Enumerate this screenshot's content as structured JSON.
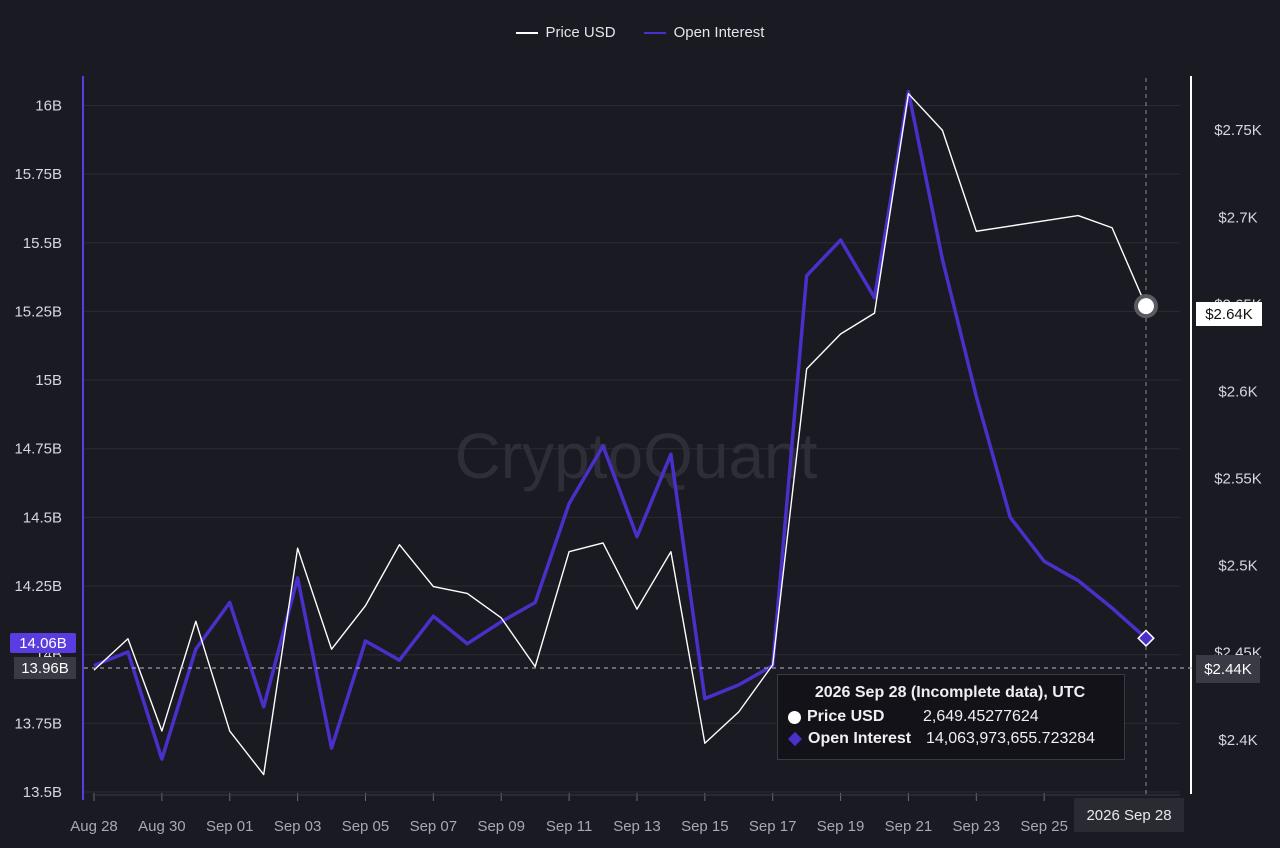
{
  "legend": {
    "price_label": "Price USD",
    "oi_label": "Open Interest"
  },
  "watermark": "CryptoQuant",
  "tooltip": {
    "title": "2026 Sep 28 (Incomplete data), UTC",
    "price_label": "Price USD",
    "price_value": "2,649.45277624",
    "oi_label": "Open Interest",
    "oi_value": "14,063,973,655.723284"
  },
  "badges": {
    "date": "2026 Sep 28",
    "oi_current": "14.06B",
    "oi_cursor": "13.96B",
    "price_current": "$2.64K",
    "price_cursor": "$2.44K"
  },
  "colors": {
    "background": "#1a1a22",
    "price": "#ffffff",
    "open_interest": "#4b2fc9",
    "grid": "#2a2a34",
    "axis_left": "#5b3ce0"
  },
  "chart_data": {
    "type": "line",
    "x": [
      "Aug 28",
      "Aug 29",
      "Aug 30",
      "Aug 31",
      "Sep 01",
      "Sep 02",
      "Sep 03",
      "Sep 04",
      "Sep 05",
      "Sep 06",
      "Sep 07",
      "Sep 08",
      "Sep 09",
      "Sep 10",
      "Sep 11",
      "Sep 12",
      "Sep 13",
      "Sep 14",
      "Sep 15",
      "Sep 16",
      "Sep 17",
      "Sep 18",
      "Sep 19",
      "Sep 20",
      "Sep 21",
      "Sep 22",
      "Sep 23",
      "Sep 24",
      "Sep 25",
      "Sep 26",
      "Sep 27",
      "Sep 28"
    ],
    "x_tick_labels": [
      "Aug 28",
      "Aug 30",
      "Sep 01",
      "Sep 03",
      "Sep 05",
      "Sep 07",
      "Sep 09",
      "Sep 11",
      "Sep 13",
      "Sep 15",
      "Sep 17",
      "Sep 19",
      "Sep 21",
      "Sep 23",
      "Sep 25"
    ],
    "series": [
      {
        "name": "Price USD",
        "axis": "right",
        "values": [
          2.44,
          2.458,
          2.405,
          2.468,
          2.405,
          2.38,
          2.51,
          2.452,
          2.477,
          2.512,
          2.488,
          2.484,
          2.47,
          2.442,
          2.508,
          2.513,
          2.475,
          2.508,
          2.398,
          2.416,
          2.443,
          2.613,
          2.633,
          2.645,
          2.771,
          2.75,
          2.692,
          2.695,
          2.698,
          2.701,
          2.694,
          2.649
        ]
      },
      {
        "name": "Open Interest",
        "axis": "left",
        "values": [
          13.96,
          14.01,
          13.62,
          14.02,
          14.19,
          13.81,
          14.28,
          13.66,
          14.05,
          13.98,
          14.14,
          14.04,
          14.12,
          14.19,
          14.55,
          14.76,
          14.43,
          14.73,
          13.84,
          13.89,
          13.96,
          15.38,
          15.51,
          15.3,
          16.05,
          15.44,
          14.94,
          14.5,
          14.34,
          14.27,
          14.17,
          14.06
        ]
      }
    ],
    "y_left": {
      "ticks": [
        "13.5B",
        "13.75B",
        "14B",
        "14.25B",
        "14.5B",
        "14.75B",
        "15B",
        "15.25B",
        "15.5B",
        "15.75B",
        "16B"
      ],
      "range": [
        13.5,
        16.1
      ]
    },
    "y_right": {
      "ticks": [
        "$2.4K",
        "$2.45K",
        "$2.5K",
        "$2.55K",
        "$2.6K",
        "$2.65K",
        "$2.7K",
        "$2.75K"
      ],
      "range": [
        2.37,
        2.78
      ]
    },
    "grid": true,
    "legend_position": "top-center"
  }
}
